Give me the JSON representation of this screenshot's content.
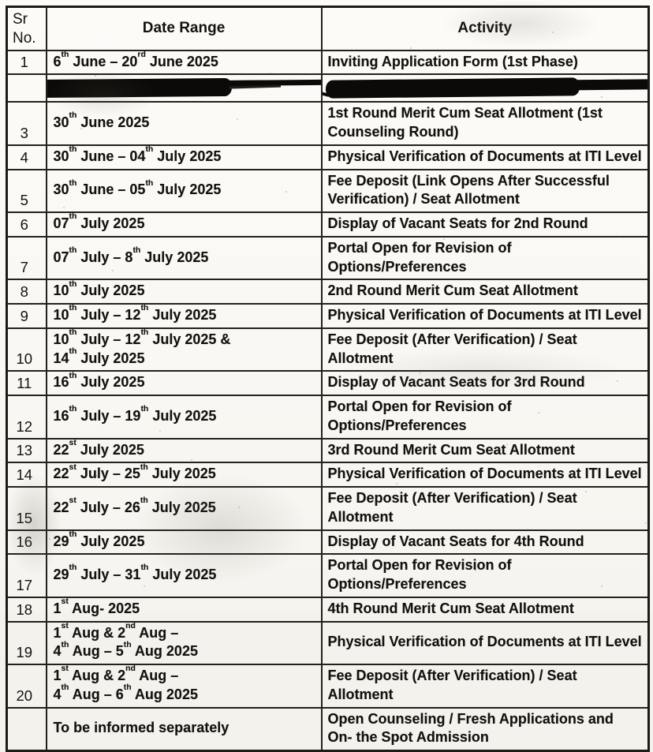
{
  "document": {
    "kind_label": "Admission counseling schedule table (scanned)"
  },
  "colors": {
    "paper": "#fbfaf7",
    "ink": "#14120f",
    "border": "#24211d",
    "redaction": "#0b0a08"
  },
  "table": {
    "headers": {
      "sr": "Sr\nNo.",
      "date": "Date Range",
      "activity": "Activity"
    },
    "rows": [
      {
        "sr": "1",
        "date": "6th June – 20rd June 2025",
        "activity": "Inviting Application Form (1st Phase)"
      },
      {
        "sr": "",
        "date": "",
        "activity": "",
        "redacted": true
      },
      {
        "sr": "3",
        "date": "30th June 2025",
        "activity": "1st Round Merit Cum Seat Allotment (1st\nCounseling Round)"
      },
      {
        "sr": "4",
        "date": "30th June – 04th July 2025",
        "activity": "Physical Verification of Documents at ITI Level"
      },
      {
        "sr": "5",
        "date": "30th June – 05th July 2025",
        "activity": "Fee Deposit (Link Opens After Successful\nVerification) / Seat Allotment"
      },
      {
        "sr": "6",
        "date": "07th July 2025",
        "activity": "Display of Vacant Seats for 2nd Round"
      },
      {
        "sr": "7",
        "date": "07th July – 8th July 2025",
        "activity": "Portal Open for Revision of Options/Preferences"
      },
      {
        "sr": "8",
        "date": "10th July 2025",
        "activity": "2nd Round Merit Cum Seat Allotment"
      },
      {
        "sr": "9",
        "date": "10th July – 12th July 2025",
        "activity": "Physical Verification of Documents at ITI Level"
      },
      {
        "sr": "10",
        "date": "10th July – 12th July 2025 &\n14th July 2025",
        "activity": "Fee Deposit (After Verification) / Seat Allotment"
      },
      {
        "sr": "11",
        "date": "16th July 2025",
        "activity": "Display of Vacant Seats for 3rd Round"
      },
      {
        "sr": "12",
        "date": "16th July – 19th July 2025",
        "activity": "Portal Open for Revision of Options/Preferences"
      },
      {
        "sr": "13",
        "date": "22st July 2025",
        "activity": "3rd Round Merit Cum Seat Allotment"
      },
      {
        "sr": "14",
        "date": "22st July – 25th July 2025",
        "activity": "Physical Verification of Documents at ITI Level"
      },
      {
        "sr": "15",
        "date": "22st July – 26th July 2025",
        "activity": "Fee Deposit (After Verification) / Seat Allotment"
      },
      {
        "sr": "16",
        "date": "29th July 2025",
        "activity": "Display of Vacant Seats for 4th Round"
      },
      {
        "sr": "17",
        "date": "29th July – 31th July 2025",
        "activity": "Portal Open for Revision of Options/Preferences"
      },
      {
        "sr": "18",
        "date": "1st Aug- 2025",
        "activity": "4th Round Merit Cum Seat Allotment"
      },
      {
        "sr": "19",
        "date": "1st Aug & 2nd Aug –\n4th Aug – 5th Aug 2025",
        "activity": "Physical Verification of Documents at ITI Level"
      },
      {
        "sr": "20",
        "date": "1st Aug & 2nd Aug –\n4th Aug – 6th Aug 2025",
        "activity": "Fee Deposit (After Verification) / Seat Allotment"
      },
      {
        "sr": "",
        "date": "To be informed separately",
        "activity": "Open Counseling / Fresh Applications and\nOn- the Spot Admission"
      }
    ]
  }
}
